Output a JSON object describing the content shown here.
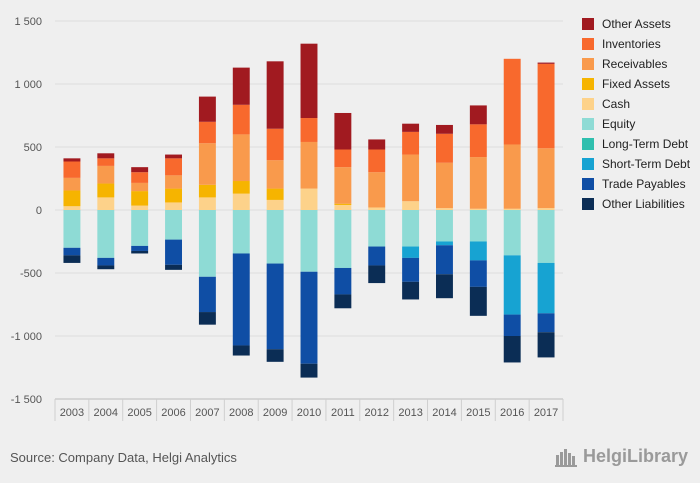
{
  "chart_data": {
    "type": "bar",
    "stacked": true,
    "categories": [
      "2003",
      "2004",
      "2005",
      "2006",
      "2007",
      "2008",
      "2009",
      "2010",
      "2011",
      "2012",
      "2013",
      "2014",
      "2015",
      "2016",
      "2017"
    ],
    "ylim": [
      -1500,
      1500
    ],
    "yticks": [
      1500,
      1000,
      500,
      0,
      -500,
      -1000,
      -1500
    ],
    "ytick_labels": [
      "1 500",
      "1 000",
      "500",
      "0",
      "-500",
      "-1 000",
      "-1 500"
    ],
    "grid": true,
    "legend_position": "right",
    "positive_series": [
      {
        "name": "Cash",
        "color": "#fdd28a",
        "values": [
          30,
          100,
          35,
          60,
          100,
          130,
          80,
          170,
          40,
          20,
          70,
          15,
          10,
          10,
          15
        ]
      },
      {
        "name": "Fixed Assets",
        "color": "#f6b400",
        "values": [
          125,
          110,
          115,
          110,
          100,
          100,
          90,
          0,
          10,
          0,
          0,
          0,
          0,
          0,
          0
        ]
      },
      {
        "name": "Receivables",
        "color": "#f99a4c",
        "values": [
          100,
          140,
          65,
          105,
          330,
          370,
          225,
          370,
          290,
          280,
          370,
          360,
          410,
          510,
          475
        ]
      },
      {
        "name": "Inventories",
        "color": "#f8692d",
        "values": [
          130,
          60,
          85,
          135,
          170,
          235,
          250,
          190,
          140,
          180,
          180,
          230,
          260,
          680,
          670
        ]
      },
      {
        "name": "Other Assets",
        "color": "#a11a20",
        "values": [
          25,
          40,
          40,
          30,
          200,
          295,
          535,
          590,
          290,
          80,
          65,
          70,
          150,
          0,
          10
        ]
      }
    ],
    "negative_series": [
      {
        "name": "Equity",
        "color": "#8edbd5",
        "values": [
          -300,
          -380,
          -285,
          -235,
          -530,
          -345,
          -425,
          -490,
          -460,
          -290,
          -290,
          -250,
          -250,
          -360,
          -420
        ]
      },
      {
        "name": "Long-Term Debt",
        "color": "#2fbfae",
        "values": [
          0,
          0,
          0,
          0,
          0,
          0,
          0,
          0,
          0,
          0,
          0,
          0,
          0,
          0,
          0
        ]
      },
      {
        "name": "Short-Term Debt",
        "color": "#17a3d2",
        "values": [
          0,
          0,
          0,
          0,
          0,
          0,
          0,
          0,
          0,
          0,
          -90,
          -30,
          -150,
          -470,
          -400
        ]
      },
      {
        "name": "Trade Payables",
        "color": "#0f4ea5",
        "values": [
          -60,
          -60,
          -40,
          -200,
          -280,
          -730,
          -680,
          -730,
          -210,
          -150,
          -190,
          -230,
          -210,
          -170,
          -150
        ]
      },
      {
        "name": "Other Liabilities",
        "color": "#0b2d55",
        "values": [
          -60,
          -30,
          -20,
          -40,
          -100,
          -80,
          -100,
          -110,
          -110,
          -140,
          -140,
          -190,
          -230,
          -210,
          -200
        ]
      }
    ],
    "legend_order": [
      "Other Assets",
      "Inventories",
      "Receivables",
      "Fixed Assets",
      "Cash",
      "Equity",
      "Long-Term Debt",
      "Short-Term Debt",
      "Trade Payables",
      "Other Liabilities"
    ]
  },
  "footer": {
    "source": "Source: Company Data, Helgi Analytics",
    "logo_text": "HelgiLibrary"
  }
}
